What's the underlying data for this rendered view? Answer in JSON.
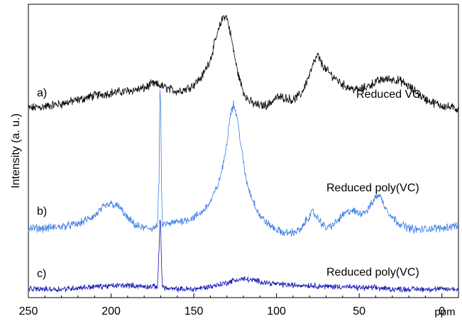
{
  "chart_data": {
    "type": "line",
    "title": "",
    "xlabel": "ppm",
    "ylabel": "Intensity (a. u.)",
    "xlim": [
      250,
      -10
    ],
    "x_reversed": true,
    "x_ticks": [
      250,
      200,
      150,
      100,
      50,
      0
    ],
    "y_ticks": [],
    "grid": false,
    "legend": "none",
    "series": [
      {
        "label": "a)",
        "name": "Reduced VC",
        "color": "#000000",
        "x": [
          250,
          240,
          230,
          220,
          210,
          200,
          190,
          180,
          175,
          170,
          165,
          160,
          155,
          150,
          145,
          140,
          137,
          134,
          132,
          130,
          128,
          126,
          124,
          122,
          120,
          117,
          114,
          110,
          105,
          100,
          95,
          90,
          85,
          80,
          77,
          75,
          73,
          70,
          65,
          60,
          55,
          50,
          45,
          40,
          35,
          30,
          25,
          20,
          15,
          10,
          5,
          0,
          -5,
          -10
        ],
        "y": [
          0.08,
          0.1,
          0.13,
          0.17,
          0.22,
          0.25,
          0.27,
          0.3,
          0.35,
          0.33,
          0.29,
          0.27,
          0.29,
          0.34,
          0.43,
          0.62,
          0.82,
          1.0,
          1.1,
          1.08,
          0.92,
          0.72,
          0.52,
          0.38,
          0.26,
          0.17,
          0.13,
          0.11,
          0.12,
          0.2,
          0.2,
          0.17,
          0.24,
          0.45,
          0.6,
          0.66,
          0.58,
          0.5,
          0.42,
          0.34,
          0.3,
          0.28,
          0.32,
          0.37,
          0.4,
          0.4,
          0.38,
          0.32,
          0.25,
          0.18,
          0.14,
          0.11,
          0.09,
          0.07
        ],
        "noise": 0.04
      },
      {
        "label": "b)",
        "name": "Reduced poly(VC)",
        "color": "#3d7fe6",
        "x": [
          250,
          240,
          230,
          220,
          210,
          205,
          200,
          195,
          190,
          185,
          180,
          175,
          172,
          171,
          170.5,
          170,
          169.5,
          169,
          165,
          160,
          155,
          150,
          145,
          140,
          135,
          132,
          130,
          128,
          126,
          124,
          122,
          120,
          118,
          115,
          112,
          110,
          105,
          100,
          95,
          90,
          85,
          82,
          78,
          75,
          70,
          65,
          60,
          55,
          50,
          45,
          40,
          38,
          36,
          33,
          30,
          25,
          20,
          15,
          10,
          5,
          0,
          -5,
          -10
        ],
        "y": [
          0.0,
          0.0,
          0.02,
          0.05,
          0.15,
          0.25,
          0.3,
          0.26,
          0.12,
          0.03,
          0.0,
          0.0,
          0.02,
          0.6,
          1.7,
          1.5,
          0.5,
          0.05,
          0.05,
          0.08,
          0.1,
          0.13,
          0.2,
          0.32,
          0.55,
          0.8,
          1.05,
          1.4,
          1.52,
          1.38,
          1.1,
          0.8,
          0.56,
          0.38,
          0.24,
          0.15,
          0.05,
          -0.02,
          -0.06,
          -0.05,
          -0.02,
          0.1,
          0.2,
          0.12,
          0.0,
          0.05,
          0.16,
          0.22,
          0.18,
          0.22,
          0.38,
          0.42,
          0.33,
          0.22,
          0.13,
          0.05,
          0.0,
          -0.02,
          -0.01,
          0.0,
          0.0,
          0.02,
          0.04
        ],
        "noise": 0.04
      },
      {
        "label": "c)",
        "name": "Reduced poly(VC)",
        "color": "#1313b4",
        "x": [
          250,
          230,
          210,
          190,
          180,
          172,
          171,
          170.5,
          170,
          169.5,
          169,
          165,
          160,
          150,
          140,
          130,
          125,
          120,
          115,
          110,
          100,
          90,
          80,
          70,
          60,
          50,
          40,
          30,
          20,
          10,
          0,
          -10
        ],
        "y": [
          0.0,
          0.0,
          0.02,
          0.03,
          0.02,
          0.02,
          0.3,
          0.55,
          0.5,
          0.2,
          0.02,
          0.0,
          0.0,
          0.0,
          0.02,
          0.05,
          0.07,
          0.08,
          0.07,
          0.06,
          0.04,
          0.03,
          0.03,
          0.02,
          0.02,
          0.01,
          0.01,
          0.0,
          0.0,
          0.0,
          0.0,
          0.0
        ],
        "noise": 0.018
      }
    ]
  }
}
